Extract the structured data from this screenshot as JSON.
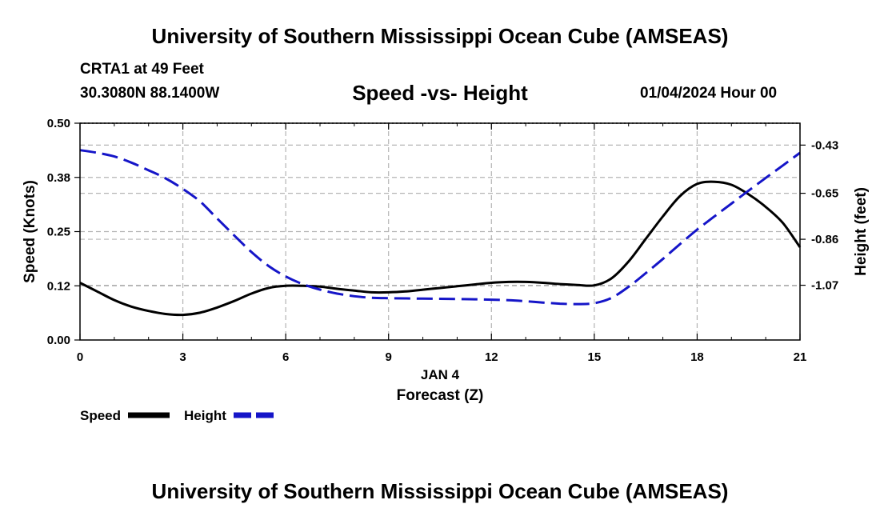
{
  "header": {
    "title": "University of Southern Mississippi Ocean Cube (AMSEAS)",
    "station": "CRTA1 at 49 Feet",
    "coordinates": "30.3080N  88.1400W",
    "subtitle": "Speed -vs- Height",
    "datestamp": "01/04/2024 Hour 00"
  },
  "footer": {
    "title": "University of Southern Mississippi Ocean Cube (AMSEAS)"
  },
  "colors": {
    "speed": "#000000",
    "height": "#1515c8",
    "grid": "#b4b4b4"
  },
  "chart_data": {
    "type": "line",
    "title": "Speed -vs- Height",
    "xlabel": "Forecast (Z)",
    "xlabel_date": "JAN 4",
    "ylabel": "Speed (Knots)",
    "y2label": "Height (feet)",
    "xlim": [
      0,
      21
    ],
    "ylim": [
      0,
      0.5
    ],
    "y2lim": [
      -1.32,
      -0.33
    ],
    "x_ticks": [
      0,
      3,
      6,
      9,
      12,
      15,
      18,
      21
    ],
    "x_tick_labels": [
      "0",
      "3",
      "6",
      "9",
      "12",
      "15",
      "18",
      "21"
    ],
    "y_ticks": [
      0.0,
      0.125,
      0.25,
      0.375,
      0.5
    ],
    "y_tick_labels": [
      "0.00",
      "0.12",
      "0.25",
      "0.38",
      "0.50"
    ],
    "y2_ticks": [
      -1.07,
      -0.86,
      -0.65,
      -0.43
    ],
    "y2_tick_labels": [
      "-1.07",
      "-0.86",
      "-0.65",
      "-0.43"
    ],
    "grid": true,
    "legend_position": "bottom-left",
    "series": [
      {
        "name": "Speed",
        "axis": "left",
        "style": "solid",
        "x": [
          0,
          0.5,
          1,
          1.5,
          2,
          2.5,
          3,
          3.5,
          4,
          4.5,
          5,
          5.5,
          6,
          6.5,
          7,
          7.5,
          8,
          8.5,
          9,
          9.5,
          10,
          10.5,
          11,
          11.5,
          12,
          12.5,
          13,
          13.5,
          14,
          14.5,
          15,
          15.5,
          16,
          16.5,
          17,
          17.5,
          18,
          18.5,
          19,
          19.5,
          20,
          20.5,
          21
        ],
        "values": [
          0.132,
          0.112,
          0.092,
          0.077,
          0.067,
          0.06,
          0.058,
          0.063,
          0.075,
          0.09,
          0.107,
          0.12,
          0.125,
          0.125,
          0.123,
          0.118,
          0.114,
          0.11,
          0.11,
          0.112,
          0.116,
          0.12,
          0.124,
          0.128,
          0.132,
          0.134,
          0.134,
          0.132,
          0.129,
          0.127,
          0.126,
          0.142,
          0.181,
          0.233,
          0.285,
          0.332,
          0.36,
          0.365,
          0.358,
          0.336,
          0.307,
          0.27,
          0.214
        ]
      },
      {
        "name": "Height",
        "axis": "right",
        "style": "dashed",
        "x": [
          0,
          0.5,
          1,
          1.5,
          2,
          2.5,
          3,
          3.5,
          4,
          4.5,
          5,
          5.5,
          6,
          6.5,
          7,
          7.5,
          8,
          8.5,
          9,
          9.5,
          10,
          10.5,
          11,
          11.5,
          12,
          12.5,
          13,
          13.5,
          14,
          14.5,
          15,
          15.5,
          16,
          16.5,
          17,
          17.5,
          18,
          18.5,
          19,
          19.5,
          20,
          20.5,
          21
        ],
        "values": [
          -0.453,
          -0.465,
          -0.482,
          -0.51,
          -0.545,
          -0.582,
          -0.63,
          -0.687,
          -0.765,
          -0.843,
          -0.918,
          -0.982,
          -1.03,
          -1.065,
          -1.09,
          -1.108,
          -1.12,
          -1.127,
          -1.129,
          -1.13,
          -1.131,
          -1.132,
          -1.133,
          -1.134,
          -1.136,
          -1.138,
          -1.143,
          -1.149,
          -1.154,
          -1.156,
          -1.152,
          -1.128,
          -1.077,
          -1.015,
          -0.95,
          -0.882,
          -0.816,
          -0.756,
          -0.697,
          -0.638,
          -0.58,
          -0.523,
          -0.465
        ]
      }
    ]
  }
}
